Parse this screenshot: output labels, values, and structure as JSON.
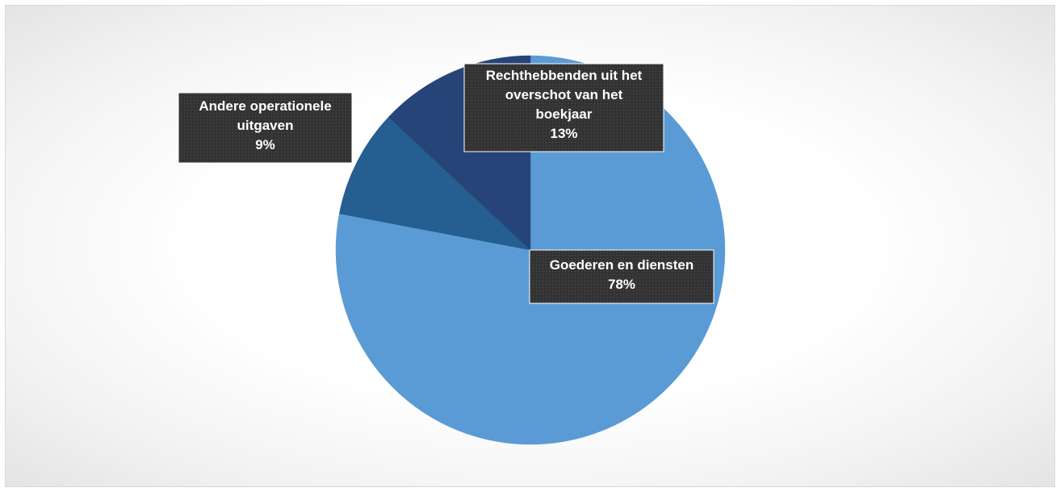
{
  "chart_data": {
    "type": "pie",
    "title": "",
    "slices": [
      {
        "label": "Goederen en diensten",
        "value": 78,
        "display": "78%",
        "color": "#5b9bd5"
      },
      {
        "label": "Andere operationele uitgaven",
        "value": 9,
        "display": "9%",
        "color": "#255e91"
      },
      {
        "label": "Rechthebbenden uit het overschot van het boekjaar",
        "value": 13,
        "display": "13%",
        "color": "#264478"
      }
    ],
    "label_lines": [
      [
        "Goederen en diensten"
      ],
      [
        "Andere operationele",
        "uitgaven"
      ],
      [
        "Rechthebbenden uit het",
        "overschot van het",
        "boekjaar"
      ]
    ],
    "legend": "none",
    "label_style": "dark-box"
  }
}
